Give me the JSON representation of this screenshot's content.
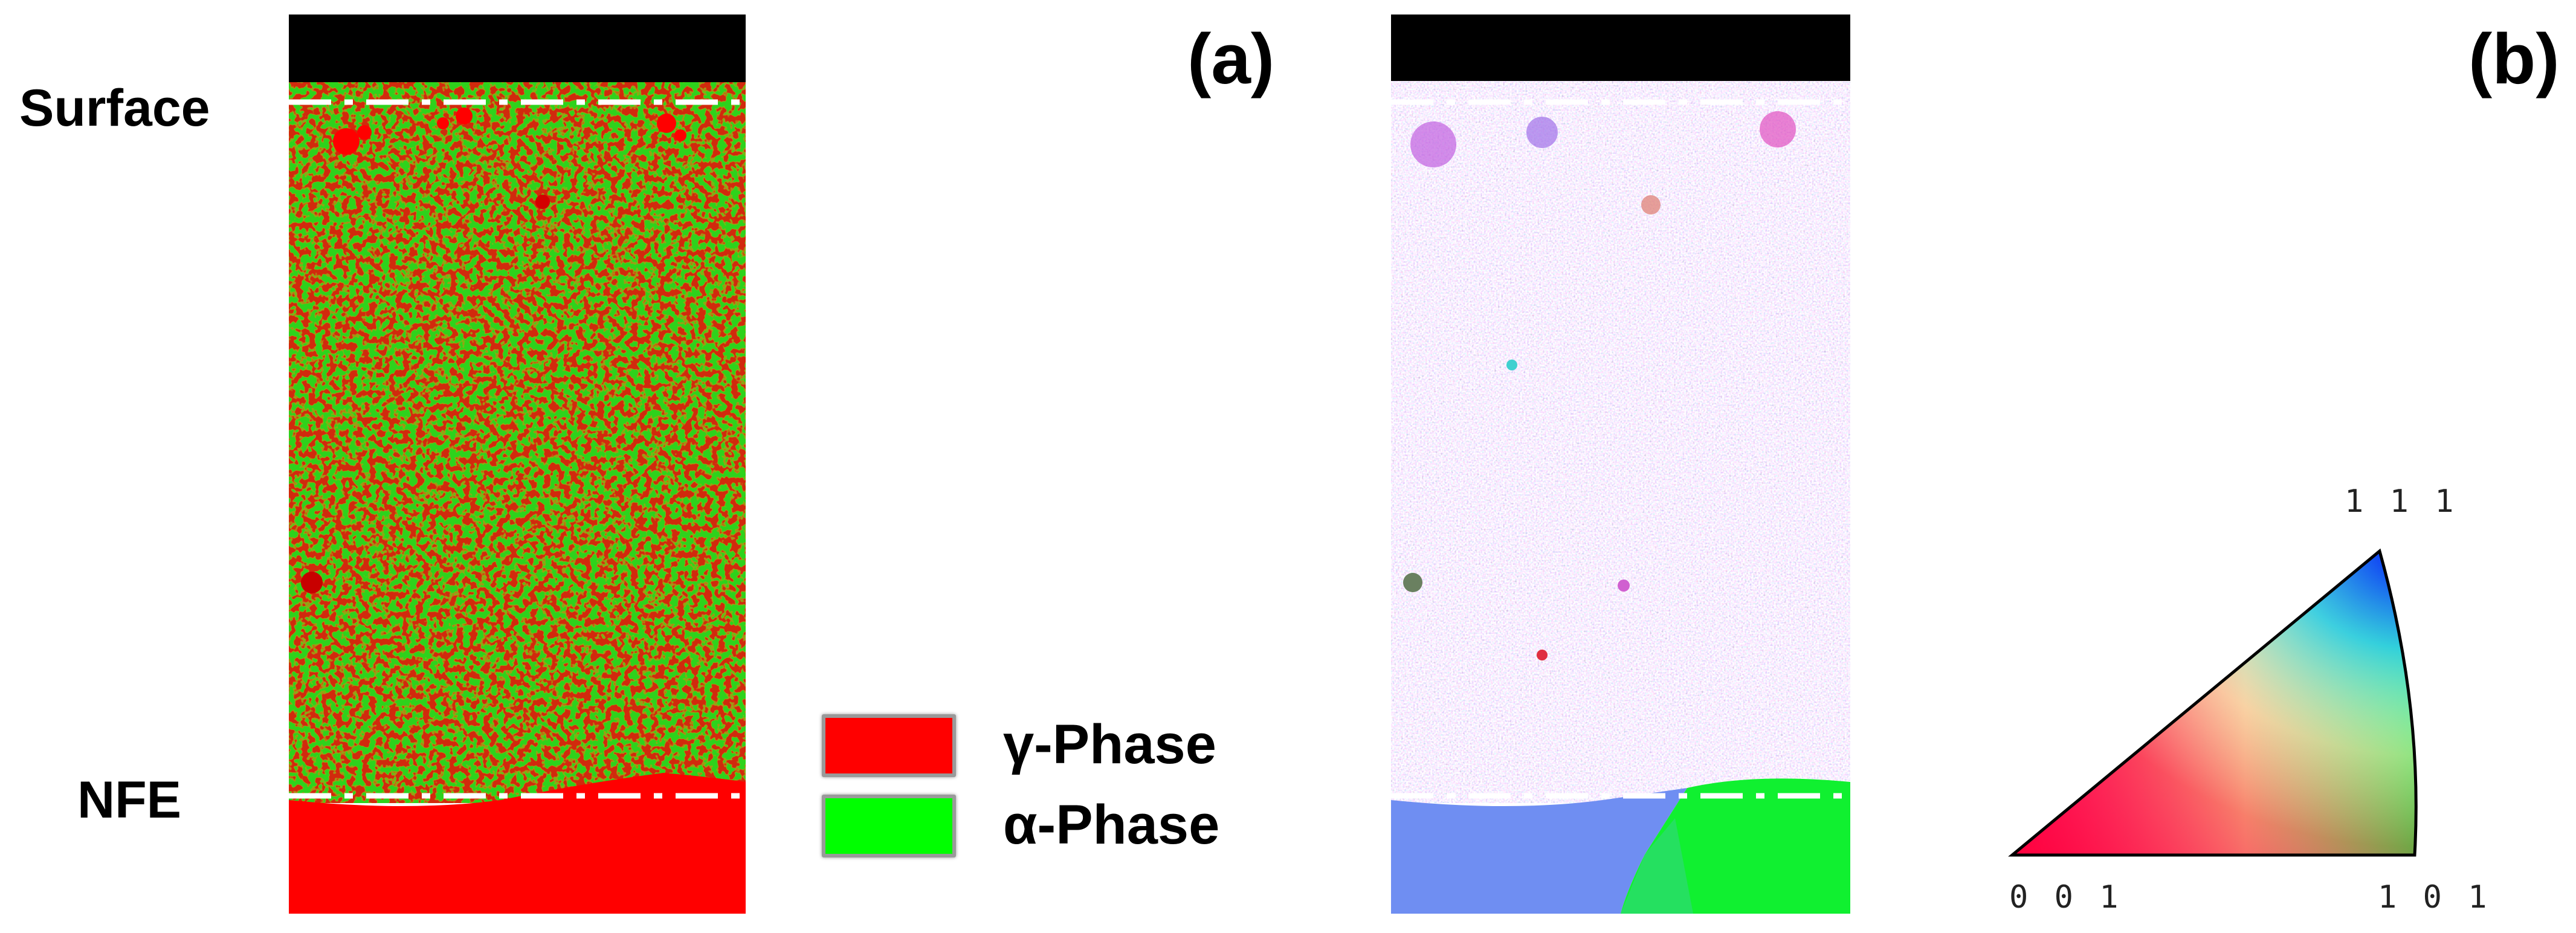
{
  "panel_a": {
    "label": "(a)",
    "surface_label": "Surface",
    "nfe_label": "NFE"
  },
  "panel_b": {
    "label": "(b)"
  },
  "legend": {
    "items": [
      {
        "label": "γ-Phase",
        "color": "#ff0000"
      },
      {
        "label": "α-Phase",
        "color": "#00ff00"
      }
    ]
  },
  "ipf_key": {
    "top_label": "1 1 1",
    "left_label": "0 0 1",
    "right_label": "1 0 1"
  },
  "colors": {
    "phase_gamma": "#ff0000",
    "phase_alpha": "#00ff00",
    "mount_black": "#000000",
    "boundary_line": "#ffffff"
  }
}
